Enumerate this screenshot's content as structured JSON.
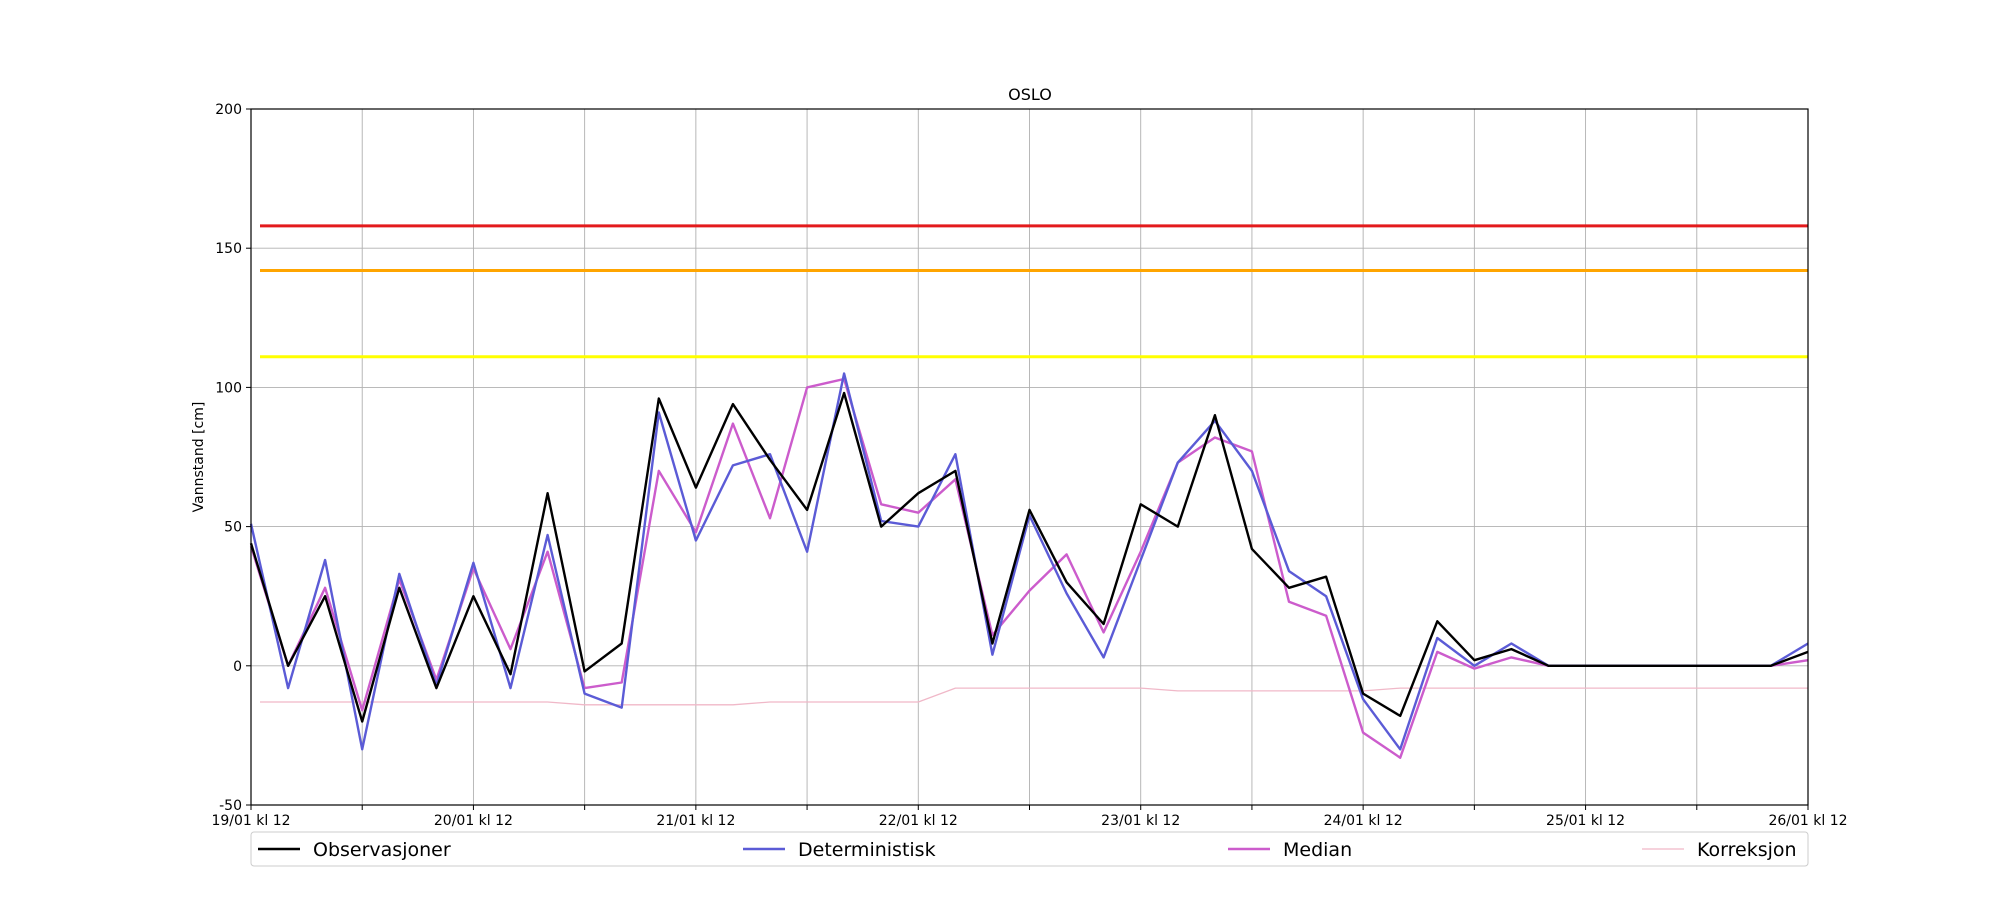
{
  "chart_data": {
    "type": "line",
    "title": "OSLO",
    "xlabel": "",
    "ylabel": "Vannstand [cm]",
    "ylim": [
      -50,
      200
    ],
    "xlim": [
      "2019-01-19T12:00",
      "2019-01-26T12:00"
    ],
    "grid": true,
    "yticks": [
      -50,
      0,
      50,
      100,
      150,
      200
    ],
    "xtick_labels": [
      "19/01 kl 12",
      "20/01 kl 12",
      "21/01 kl 12",
      "22/01 kl 12",
      "23/01 kl 12",
      "24/01 kl 12",
      "25/01 kl 12",
      "26/01 kl 12"
    ],
    "legend_position": "bottom",
    "thresholds": [
      {
        "value": 158,
        "color": "#e31a1c"
      },
      {
        "value": 142,
        "color": "#ffa500"
      },
      {
        "value": 111,
        "color": "#ffff00"
      }
    ],
    "x": [
      "2019-01-19T12:00",
      "2019-01-19T16:00",
      "2019-01-19T20:00",
      "2019-01-20T00:00",
      "2019-01-20T04:00",
      "2019-01-20T08:00",
      "2019-01-20T12:00",
      "2019-01-20T16:00",
      "2019-01-20T20:00",
      "2019-01-21T00:00",
      "2019-01-21T04:00",
      "2019-01-21T08:00",
      "2019-01-21T12:00",
      "2019-01-21T16:00",
      "2019-01-21T20:00",
      "2019-01-22T00:00",
      "2019-01-22T04:00",
      "2019-01-22T08:00",
      "2019-01-22T12:00",
      "2019-01-22T16:00",
      "2019-01-22T20:00",
      "2019-01-23T00:00",
      "2019-01-23T04:00",
      "2019-01-23T08:00",
      "2019-01-23T12:00",
      "2019-01-23T16:00",
      "2019-01-23T20:00",
      "2019-01-24T00:00",
      "2019-01-24T04:00",
      "2019-01-24T08:00",
      "2019-01-24T12:00",
      "2019-01-24T16:00",
      "2019-01-24T20:00",
      "2019-01-25T00:00",
      "2019-01-25T04:00",
      "2019-01-25T08:00",
      "2019-01-25T12:00",
      "2019-01-25T16:00",
      "2019-01-25T20:00",
      "2019-01-26T00:00",
      "2019-01-26T04:00",
      "2019-01-26T08:00",
      "2019-01-26T12:00"
    ],
    "series": [
      {
        "name": "Observasjoner",
        "color": "#000000",
        "values": [
          44,
          0,
          25,
          -20,
          28,
          -8,
          25,
          -3,
          62,
          -2,
          8,
          96,
          64,
          94,
          74,
          56,
          98,
          50,
          62,
          70,
          8,
          56,
          30,
          15,
          58,
          50,
          90,
          42,
          28,
          32,
          -10,
          -18,
          16,
          2,
          6,
          0,
          0,
          0,
          0,
          0,
          0,
          0,
          5
        ]
      },
      {
        "name": "Deterministisk",
        "color": "#5b5bd6",
        "values": [
          51,
          -8,
          38,
          -30,
          33,
          -7,
          37,
          -8,
          47,
          -10,
          -15,
          91,
          45,
          72,
          76,
          41,
          105,
          52,
          50,
          76,
          4,
          54,
          26,
          3,
          38,
          73,
          88,
          70,
          34,
          25,
          -12,
          -30,
          10,
          0,
          8,
          0,
          0,
          0,
          0,
          0,
          0,
          0,
          8
        ]
      },
      {
        "name": "Median",
        "color": "#cc5ccc",
        "values": [
          43,
          0,
          28,
          -16,
          31,
          -5,
          35,
          6,
          41,
          -8,
          -6,
          70,
          48,
          87,
          53,
          100,
          103,
          58,
          55,
          67,
          11,
          27,
          40,
          12,
          41,
          73,
          82,
          77,
          23,
          18,
          -24,
          -33,
          5,
          -1,
          3,
          0,
          0,
          0,
          0,
          0,
          0,
          0,
          2
        ]
      },
      {
        "name": "Korreksjon",
        "color": "#f0b8c8",
        "values": [
          -13,
          -13,
          -13,
          -13,
          -13,
          -13,
          -13,
          -13,
          -13,
          -14,
          -14,
          -14,
          -14,
          -14,
          -13,
          -13,
          -13,
          -13,
          -13,
          -8,
          -8,
          -8,
          -8,
          -8,
          -8,
          -9,
          -9,
          -9,
          -9,
          -9,
          -9,
          -8,
          -8,
          -8,
          -8,
          -8,
          -8,
          -8,
          -8,
          -8,
          -8,
          -8,
          -8
        ]
      }
    ]
  }
}
